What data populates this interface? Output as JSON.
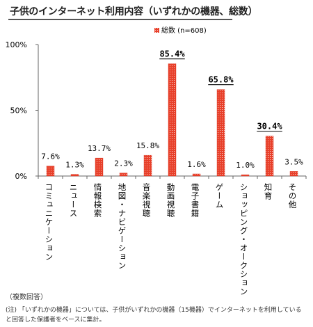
{
  "title": "子供のインターネット利用内容（いずれかの機器、総数）",
  "note_multiple": "（複数回答）",
  "note_line1": "(注) 「いずれかの機器」については、子供がいずれかの機器（15機器）でインターネットを利用している",
  "note_line2": "と回答した保護者をベースに集計。",
  "colors": {
    "bar": "#e8402a",
    "bar_dots": "#ffffff",
    "axis": "#333333",
    "text": "#222222"
  },
  "chart_data": {
    "type": "bar",
    "categories": [
      "コミュニケーション",
      "ニュース",
      "情報検索",
      "地図・ナビゲーション",
      "音楽視聴",
      "動画視聴",
      "電子書籍",
      "ゲーム",
      "ショッピング・オークション",
      "知育",
      "その他"
    ],
    "series": [
      {
        "name": "総数 (n=608)",
        "values": [
          7.6,
          1.3,
          13.7,
          2.3,
          15.8,
          85.4,
          1.6,
          65.8,
          1.0,
          30.4,
          3.5
        ]
      }
    ],
    "value_labels": [
      "7.6%",
      "1.3%",
      "13.7%",
      "2.3%",
      "15.8%",
      "85.4%",
      "1.6%",
      "65.8%",
      "1.0%",
      "30.4%",
      "3.5%"
    ],
    "highlighted": [
      false,
      false,
      false,
      false,
      false,
      true,
      false,
      true,
      false,
      true,
      false
    ],
    "yticks": [
      "0%",
      "50%",
      "100%"
    ],
    "ylim": [
      0,
      100
    ],
    "legend_position": "top-center",
    "grid": false
  }
}
